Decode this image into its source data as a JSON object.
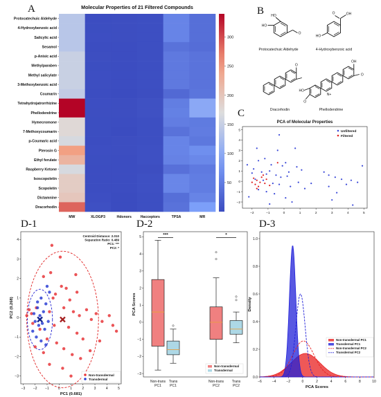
{
  "panels": {
    "A": "A",
    "B": "B",
    "C": "C",
    "D1": "D-1",
    "D2": "D-2",
    "D3": "D-3"
  },
  "chart_data": [
    {
      "id": "A",
      "type": "heatmap",
      "title": "Molecular Properties of 21 Filtered Compounds",
      "rows": [
        "Protocatechuic Aldehyde",
        "4-Hydroxybenzoic acid",
        "Salicylic acid",
        "Sesamol",
        "p-Anisic acid",
        "Methylparaben",
        "Methyl salicylate",
        "3-Methoxybenzoic acid",
        "Coumarin",
        "Tetrahydrojatrorrhizine",
        "Phellodendrine",
        "Hymecromone",
        "7-Methoxycoumarin",
        "p-Coumaric acid",
        "Pterosin G",
        "Ethyl ferulate",
        "Raspberry Ketone",
        "Isoscopoletin",
        "Scopoletin",
        "Dictamnine",
        "Dracorhodin"
      ],
      "columns": [
        "MW",
        "XLOGP3",
        "Hdonors",
        "Hacceptors",
        "TPSA",
        "MR"
      ],
      "values": [
        [
          138,
          1.2,
          2,
          3,
          57.5,
          35.4
        ],
        [
          138,
          1.6,
          2,
          3,
          57.5,
          35.4
        ],
        [
          138,
          2.3,
          2,
          3,
          57.5,
          35.4
        ],
        [
          138,
          1.2,
          1,
          3,
          38.7,
          34.2
        ],
        [
          152,
          2.0,
          1,
          3,
          46.5,
          40.4
        ],
        [
          152,
          1.9,
          1,
          3,
          46.5,
          40.4
        ],
        [
          152,
          2.4,
          1,
          3,
          46.5,
          40.4
        ],
        [
          152,
          2.0,
          1,
          3,
          46.5,
          40.4
        ],
        [
          146,
          1.4,
          0,
          2,
          30.2,
          42.0
        ],
        [
          342,
          2.5,
          2,
          5,
          51.2,
          98.0
        ],
        [
          342,
          2.1,
          2,
          5,
          53.8,
          98.0
        ],
        [
          176,
          1.9,
          1,
          3,
          50.4,
          47.7
        ],
        [
          176,
          1.9,
          0,
          3,
          39.4,
          49.5
        ],
        [
          164,
          1.5,
          2,
          3,
          57.5,
          45.1
        ],
        [
          248,
          2.3,
          2,
          4,
          57.5,
          68.4
        ],
        [
          222,
          1.9,
          1,
          4,
          55.8,
          61.3
        ],
        [
          164,
          1.5,
          1,
          2,
          37.3,
          47.0
        ],
        [
          192,
          1.5,
          1,
          4,
          59.7,
          50.2
        ],
        [
          192,
          1.5,
          1,
          4,
          59.7,
          50.2
        ],
        [
          199,
          2.5,
          0,
          3,
          35.5,
          57.2
        ],
        [
          285,
          3.8,
          0,
          3,
          38.7,
          85.0
        ]
      ],
      "colorbar": {
        "min": 0,
        "max": 340,
        "ticks": [
          50,
          100,
          150,
          200,
          250,
          300
        ]
      }
    },
    {
      "id": "B",
      "type": "structures",
      "labels": [
        "Protocatechuic Aldehyde",
        "4-Hydroxybenzoic acid",
        "Dracorhodin",
        "Phellodendrine"
      ]
    },
    {
      "id": "C",
      "type": "scatter",
      "title": "PCA of Molecular Properties",
      "xlim": [
        -2.6,
        5.2
      ],
      "ylim": [
        -2.6,
        5.3
      ],
      "xticks": [
        -2,
        -1,
        0,
        1,
        2,
        3,
        4,
        5
      ],
      "yticks": [
        -2,
        -1,
        0,
        1,
        2,
        3,
        4,
        5
      ],
      "series": [
        {
          "name": "Unfiltered",
          "color": "#3a48d8",
          "points": [
            [
              -0.3,
              4.5
            ],
            [
              -1.7,
              3.2
            ],
            [
              -0.4,
              3.0
            ],
            [
              0.7,
              3.2
            ],
            [
              -2.0,
              0.8
            ],
            [
              -1.2,
              2.2
            ],
            [
              -1.6,
              2.0
            ],
            [
              -0.1,
              1.5
            ],
            [
              0.1,
              1.8
            ],
            [
              0.8,
              1.4
            ],
            [
              1.1,
              1.1
            ],
            [
              -1.4,
              0.9
            ],
            [
              -1.9,
              1.2
            ],
            [
              -1.1,
              0.7
            ],
            [
              -0.9,
              1.0
            ],
            [
              -0.5,
              0.6
            ],
            [
              -0.2,
              0.4
            ],
            [
              0.2,
              0.5
            ],
            [
              -1.8,
              0.2
            ],
            [
              -1.3,
              0.1
            ],
            [
              -0.7,
              -0.2
            ],
            [
              -0.3,
              -0.3
            ],
            [
              0.4,
              -0.5
            ],
            [
              0.9,
              -0.1
            ],
            [
              -1.6,
              -0.8
            ],
            [
              -1.1,
              -1.0
            ],
            [
              -0.6,
              -1.2
            ],
            [
              0.1,
              -1.6
            ],
            [
              0.5,
              -2.0
            ],
            [
              -2.2,
              -1.5
            ],
            [
              -0.9,
              -2.2
            ],
            [
              1.3,
              -0.7
            ],
            [
              2.5,
              0.9
            ],
            [
              2.8,
              0.6
            ],
            [
              3.2,
              0.4
            ],
            [
              3.6,
              0.2
            ],
            [
              3.9,
              -0.3
            ],
            [
              4.2,
              0.1
            ],
            [
              4.6,
              -0.1
            ],
            [
              4.9,
              1.5
            ],
            [
              3.3,
              -1.1
            ],
            [
              3.0,
              -1.8
            ],
            [
              4.3,
              -2.3
            ],
            [
              2.8,
              -0.5
            ],
            [
              1.7,
              -0.2
            ],
            [
              -2.3,
              1.6
            ],
            [
              -0.8,
              1.6
            ],
            [
              0.3,
              0.9
            ]
          ]
        },
        {
          "name": "Filtered",
          "color": "#e02020",
          "points": [
            [
              -1.9,
              0.3
            ],
            [
              -1.7,
              0.1
            ],
            [
              -1.5,
              -0.1
            ],
            [
              -1.8,
              -0.3
            ],
            [
              -1.4,
              0.4
            ],
            [
              -1.6,
              -0.5
            ],
            [
              -1.2,
              -0.2
            ],
            [
              -2.0,
              -0.1
            ],
            [
              -1.3,
              0.6
            ],
            [
              -1.7,
              -0.7
            ],
            [
              -1.1,
              0.2
            ],
            [
              -0.4,
              1.8
            ],
            [
              -0.9,
              -0.4
            ]
          ]
        }
      ]
    },
    {
      "id": "D1",
      "type": "scatter",
      "xlabel": "PC1 (0.681)",
      "ylabel": "PC2 (0.268)",
      "xlim": [
        -3.2,
        5.2
      ],
      "ylim": [
        -3.4,
        4.4
      ],
      "xticks": [
        -3,
        -2,
        -1,
        0,
        1,
        2,
        3,
        4,
        5
      ],
      "yticks": [
        -3,
        -2,
        -1,
        0,
        1,
        2,
        3,
        4
      ],
      "annotation": [
        "Centroid Distance: 2.010",
        "Separation Ratio: 0.489",
        "PC1: ***",
        "PC2: *"
      ],
      "centroids": [
        {
          "name": "Non-transdermal",
          "x": 0.3,
          "y": -0.1
        },
        {
          "name": "Transdermal",
          "x": -1.6,
          "y": -0.1
        }
      ],
      "series": [
        {
          "name": "Non-transdermal",
          "color": "#e8363a",
          "points": [
            [
              -0.6,
              3.7
            ],
            [
              0.1,
              3.1
            ],
            [
              1.4,
              2.2
            ],
            [
              -0.7,
              2.3
            ],
            [
              -1.3,
              2.1
            ],
            [
              0.2,
              1.6
            ],
            [
              0.6,
              1.5
            ],
            [
              1.5,
              1.3
            ],
            [
              -0.3,
              1.2
            ],
            [
              -0.5,
              1.0
            ],
            [
              0.9,
              0.9
            ],
            [
              -2.5,
              0.4
            ],
            [
              -2.7,
              0.1
            ],
            [
              -2.3,
              0.2
            ],
            [
              -1.9,
              0.5
            ],
            [
              -0.8,
              0.3
            ],
            [
              0.4,
              0.5
            ],
            [
              1.2,
              0.3
            ],
            [
              1.7,
              0.1
            ],
            [
              2.3,
              0.4
            ],
            [
              2.7,
              -0.1
            ],
            [
              3.1,
              0.2
            ],
            [
              3.6,
              -0.2
            ],
            [
              4.2,
              0.1
            ],
            [
              4.5,
              -0.4
            ],
            [
              -2.2,
              -0.3
            ],
            [
              -1.6,
              -0.6
            ],
            [
              -0.4,
              -0.4
            ],
            [
              0.8,
              -0.5
            ],
            [
              1.5,
              -0.8
            ],
            [
              2.0,
              -1.1
            ],
            [
              -1.0,
              -1.1
            ],
            [
              -0.2,
              -1.3
            ],
            [
              0.4,
              -1.6
            ],
            [
              1.1,
              -1.9
            ],
            [
              1.8,
              -2.1
            ],
            [
              2.6,
              -1.7
            ],
            [
              -0.8,
              -2.4
            ],
            [
              0.3,
              -2.6
            ],
            [
              1.0,
              -3.0
            ],
            [
              -1.3,
              -1.8
            ],
            [
              -2.0,
              -1.5
            ],
            [
              3.4,
              -1.2
            ],
            [
              4.8,
              -0.7
            ]
          ]
        },
        {
          "name": "Transdermal",
          "color": "#2d3fd4",
          "points": [
            [
              -1.0,
              1.6
            ],
            [
              -0.8,
              1.3
            ],
            [
              -1.5,
              1.0
            ],
            [
              -1.1,
              0.7
            ],
            [
              -1.8,
              0.5
            ],
            [
              -2.1,
              0.2
            ],
            [
              -1.6,
              0.1
            ],
            [
              -1.3,
              0.3
            ],
            [
              -2.0,
              -0.2
            ],
            [
              -1.7,
              -0.4
            ],
            [
              -1.4,
              -0.3
            ],
            [
              -1.2,
              -0.6
            ],
            [
              -2.2,
              -0.7
            ],
            [
              -1.9,
              -1.0
            ],
            [
              -1.5,
              -1.2
            ],
            [
              -1.1,
              -1.4
            ],
            [
              -0.9,
              -0.2
            ],
            [
              -1.8,
              0.8
            ]
          ]
        }
      ],
      "legend": [
        "Non-transdermal",
        "Transdermal"
      ]
    },
    {
      "id": "D2",
      "type": "box",
      "ylabel": "PCA Scores",
      "ylim": [
        -3.2,
        5.3
      ],
      "yticks": [
        -3,
        -2,
        -1,
        0,
        1,
        2,
        3,
        4,
        5
      ],
      "categories": [
        "Non-trans PC1",
        "Trans PC1",
        "Non-trans PC2",
        "Trans PC2"
      ],
      "boxes": [
        {
          "q1": -1.4,
          "median": 0.6,
          "q3": 2.5,
          "whislo": -2.8,
          "whishi": 4.8,
          "fliers": [],
          "color": "#f08080"
        },
        {
          "q1": -1.9,
          "median": -1.6,
          "q3": -1.1,
          "whislo": -2.4,
          "whishi": -0.4,
          "fliers": [
            -0.2
          ],
          "color": "#add8e6"
        },
        {
          "q1": -1.0,
          "median": 0.0,
          "q3": 0.9,
          "whislo": -2.7,
          "whishi": 2.6,
          "fliers": [
            3.7,
            4.1
          ],
          "color": "#f08080"
        },
        {
          "q1": -0.7,
          "median": -0.4,
          "q3": 0.1,
          "whislo": -1.2,
          "whishi": 0.6,
          "fliers": [
            1.3,
            1.5
          ],
          "color": "#add8e6"
        }
      ],
      "significance": [
        {
          "pair": [
            0,
            1
          ],
          "label": "***"
        },
        {
          "pair": [
            2,
            3
          ],
          "label": "*"
        }
      ],
      "legend": [
        "Non-transdermal",
        "Transdermal"
      ]
    },
    {
      "id": "D3",
      "type": "area",
      "xlabel": "PCA Scores",
      "ylabel": "Density",
      "xlim": [
        -6,
        10
      ],
      "ylim": [
        0,
        1.05
      ],
      "xticks": [
        -6,
        -4,
        -2,
        0,
        2,
        4,
        6,
        8,
        10
      ],
      "yticks": [
        0.0,
        0.2,
        0.4,
        0.6,
        0.8,
        1.0
      ],
      "series": [
        {
          "name": "Non-transdermal PC1",
          "color": "#e82020",
          "kind": "fill",
          "mu": 0.4,
          "sigma": 2.0,
          "peak": 0.17
        },
        {
          "name": "Transdermal PC1",
          "color": "#2020d8",
          "kind": "fill",
          "mu": -1.4,
          "sigma": 0.45,
          "peak": 0.95
        },
        {
          "name": "Non-transdermal PC2",
          "color": "#e82020",
          "kind": "dash",
          "mu": 0.1,
          "sigma": 1.5,
          "peak": 0.26
        },
        {
          "name": "Transdermal PC2",
          "color": "#2020d8",
          "kind": "dash",
          "mu": -0.3,
          "sigma": 0.65,
          "peak": 0.6
        }
      ]
    }
  ]
}
